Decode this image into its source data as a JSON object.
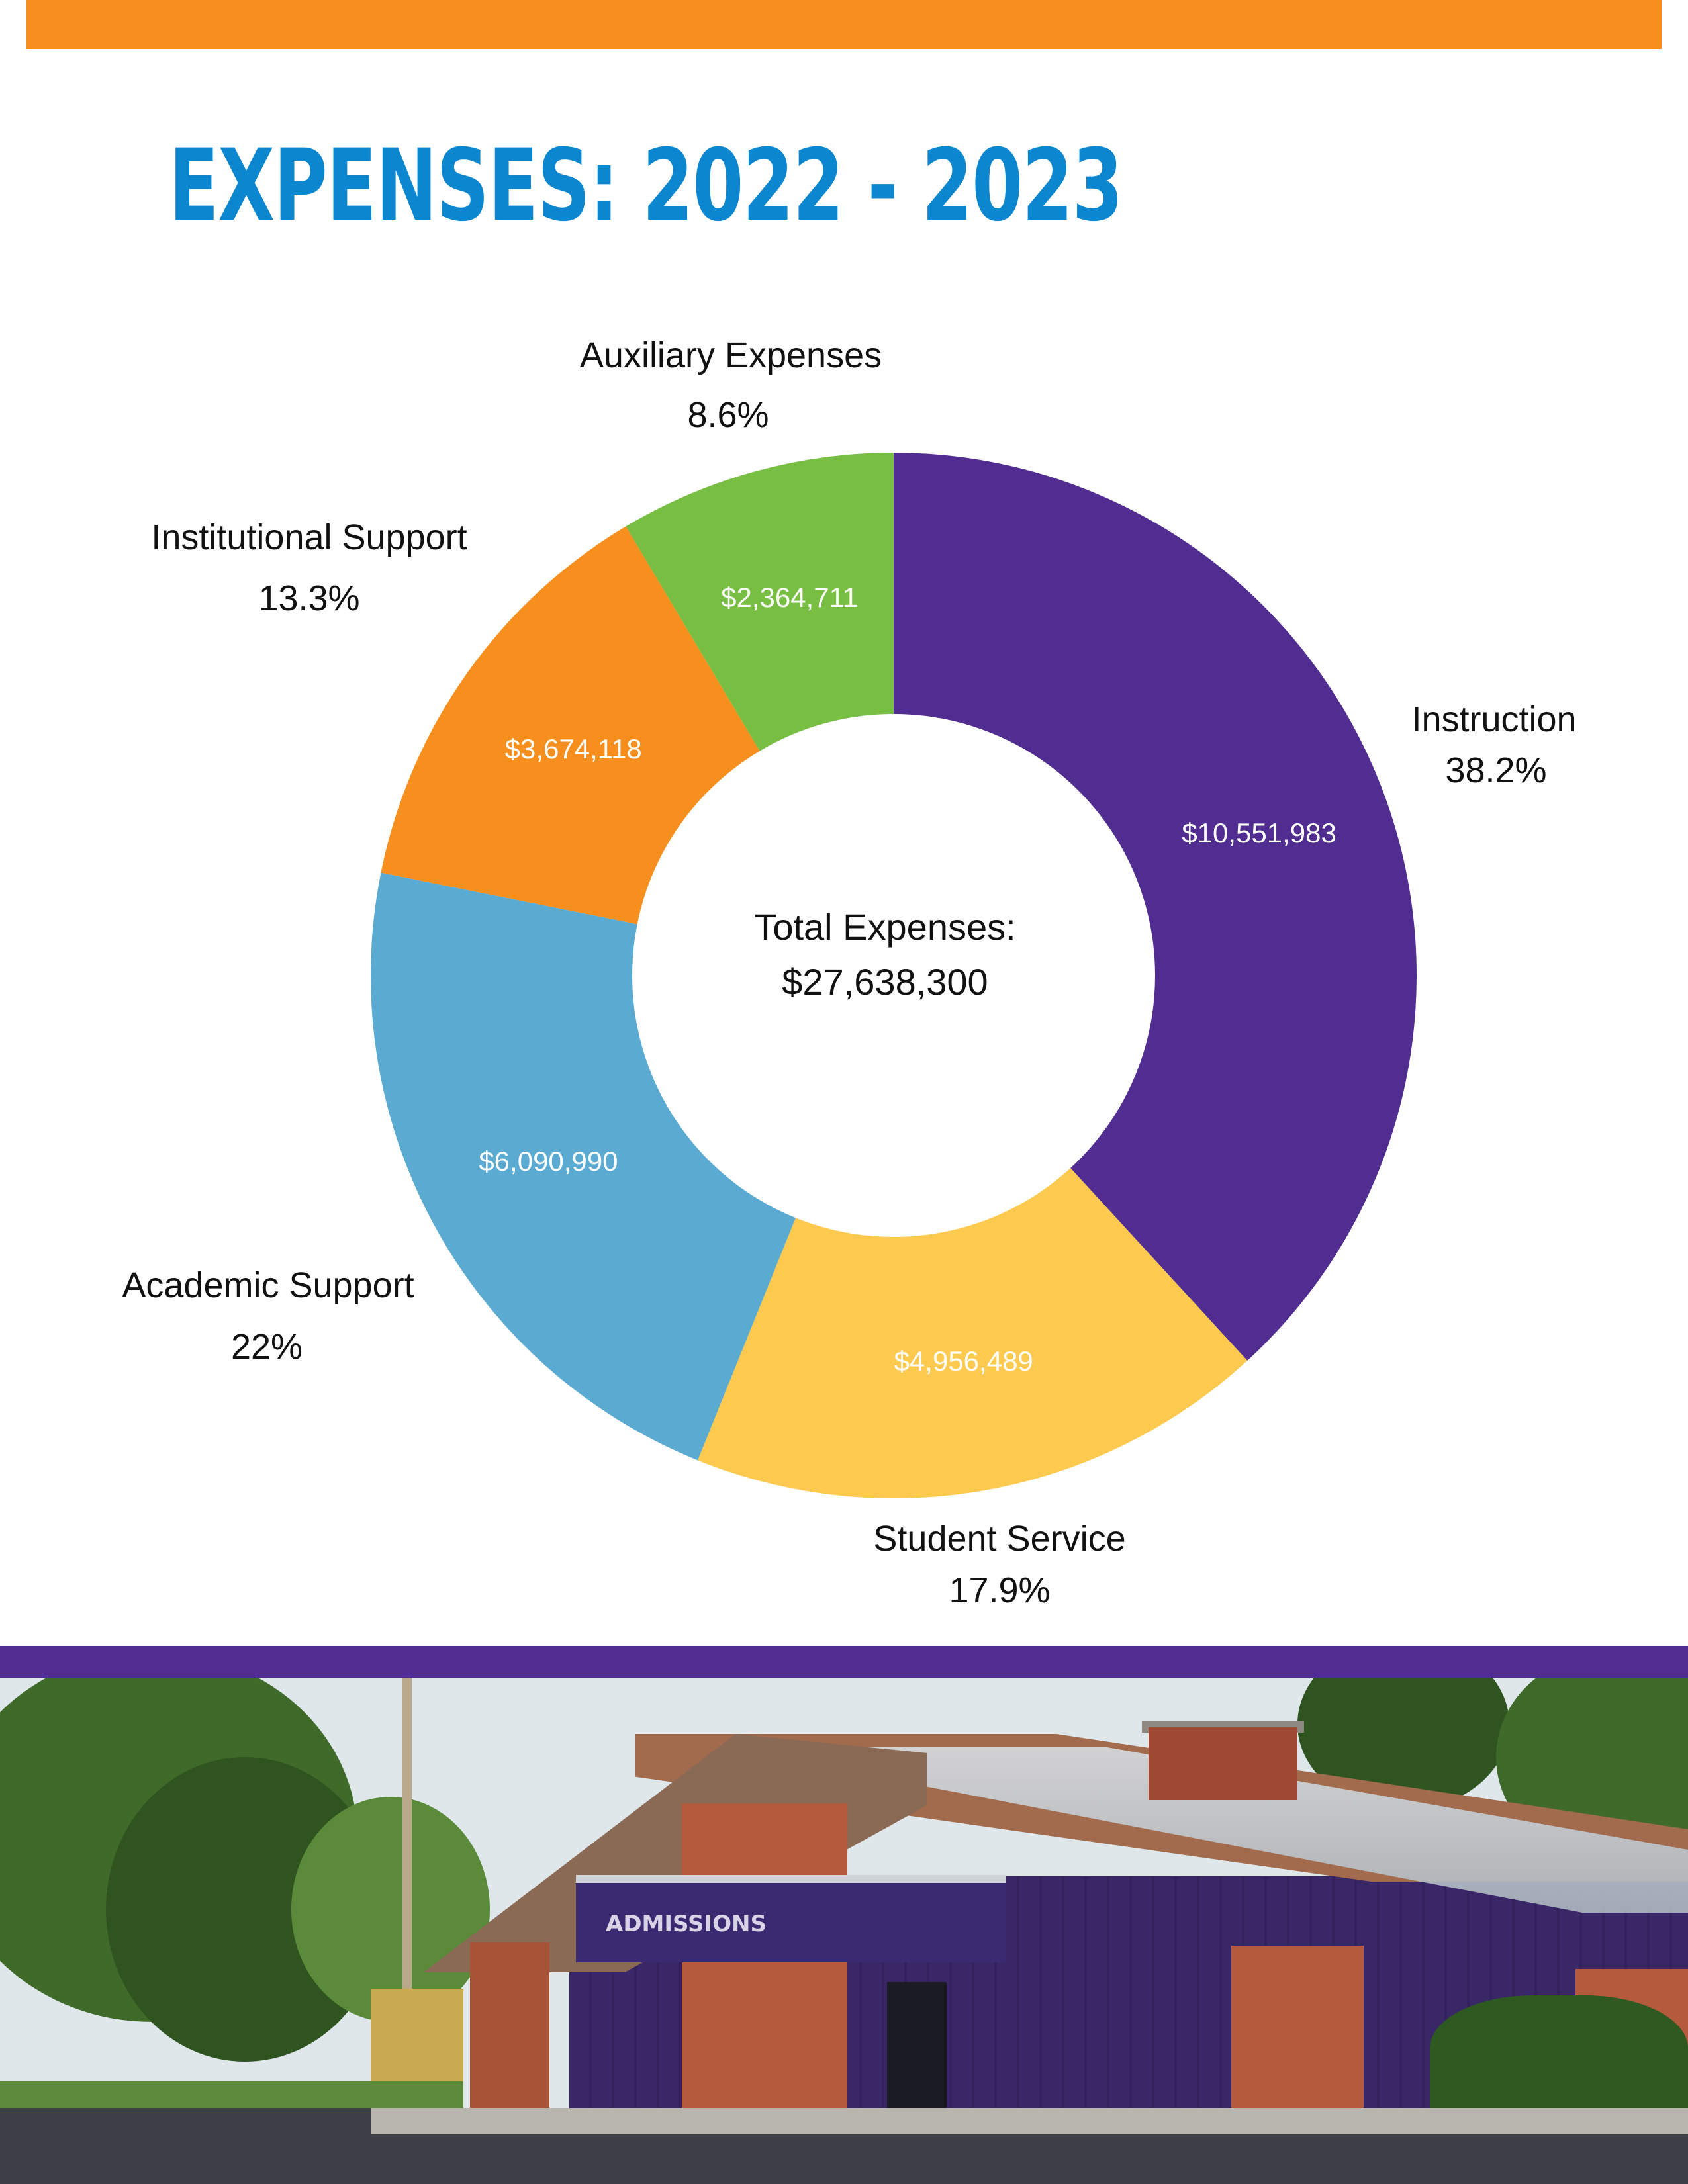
{
  "page": {
    "title": "EXPENSES: 2022 - 2023",
    "colors": {
      "top_bar": "#f78f1e",
      "title": "#0c87cf",
      "divider_bar": "#522d91"
    }
  },
  "chart_data": {
    "type": "pie",
    "donut": true,
    "center_label_line1": "Total Expenses:",
    "center_label_line2": "$27,638,300",
    "total": 27638300,
    "slices": [
      {
        "name": "Instruction",
        "value": 10551983,
        "value_label": "$10,551,983",
        "percent_label": "38.2%",
        "color": "#522d91"
      },
      {
        "name": "Student Service",
        "value": 4956489,
        "value_label": "$4,956,489",
        "percent_label": "17.9%",
        "color": "#fdc94e"
      },
      {
        "name": "Academic Support",
        "value": 6090990,
        "value_label": "$6,090,990",
        "percent_label": "22%",
        "color": "#5aaad2"
      },
      {
        "name": "Institutional Support",
        "value": 3674118,
        "value_label": "$3,674,118",
        "percent_label": "13.3%",
        "color": "#f78f1e"
      },
      {
        "name": "Auxiliary Expenses",
        "value": 2364711,
        "value_label": "$2,364,711",
        "percent_label": "8.6%",
        "color": "#78be43"
      }
    ],
    "legend": "none"
  },
  "photo": {
    "sign_text": "ADMISSIONS",
    "description_icon": "building-photo"
  }
}
